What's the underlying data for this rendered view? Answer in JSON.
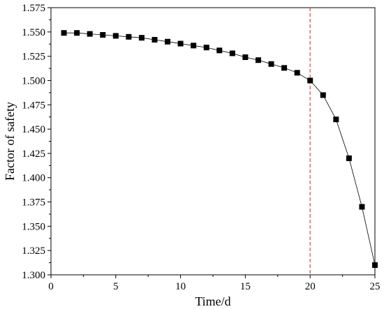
{
  "chart_data": {
    "type": "line",
    "xlabel": "Time/d",
    "ylabel": "Factor of safety",
    "xlim": [
      0,
      25
    ],
    "ylim": [
      1.3,
      1.575
    ],
    "x_ticks": [
      "0",
      "5",
      "10",
      "15",
      "20",
      "25"
    ],
    "y_ticks": [
      "1.300",
      "1.325",
      "1.350",
      "1.375",
      "1.400",
      "1.425",
      "1.450",
      "1.475",
      "1.500",
      "1.525",
      "1.550",
      "1.575"
    ],
    "grid": false,
    "marker": "square",
    "series": [
      {
        "color": "#000000",
        "x": [
          1,
          2,
          3,
          4,
          5,
          6,
          7,
          8,
          9,
          10,
          11,
          12,
          13,
          14,
          15,
          16,
          17,
          18,
          19,
          20,
          21,
          22,
          23,
          24,
          25
        ],
        "y": [
          1.549,
          1.549,
          1.548,
          1.547,
          1.546,
          1.545,
          1.544,
          1.542,
          1.54,
          1.538,
          1.536,
          1.534,
          1.531,
          1.528,
          1.524,
          1.521,
          1.517,
          1.513,
          1.508,
          1.5,
          1.485,
          1.46,
          1.42,
          1.37,
          1.31
        ]
      }
    ],
    "reference_line": {
      "x": 20,
      "color": "#e8433a",
      "style": "dashed",
      "highlight_tick": "20"
    }
  }
}
